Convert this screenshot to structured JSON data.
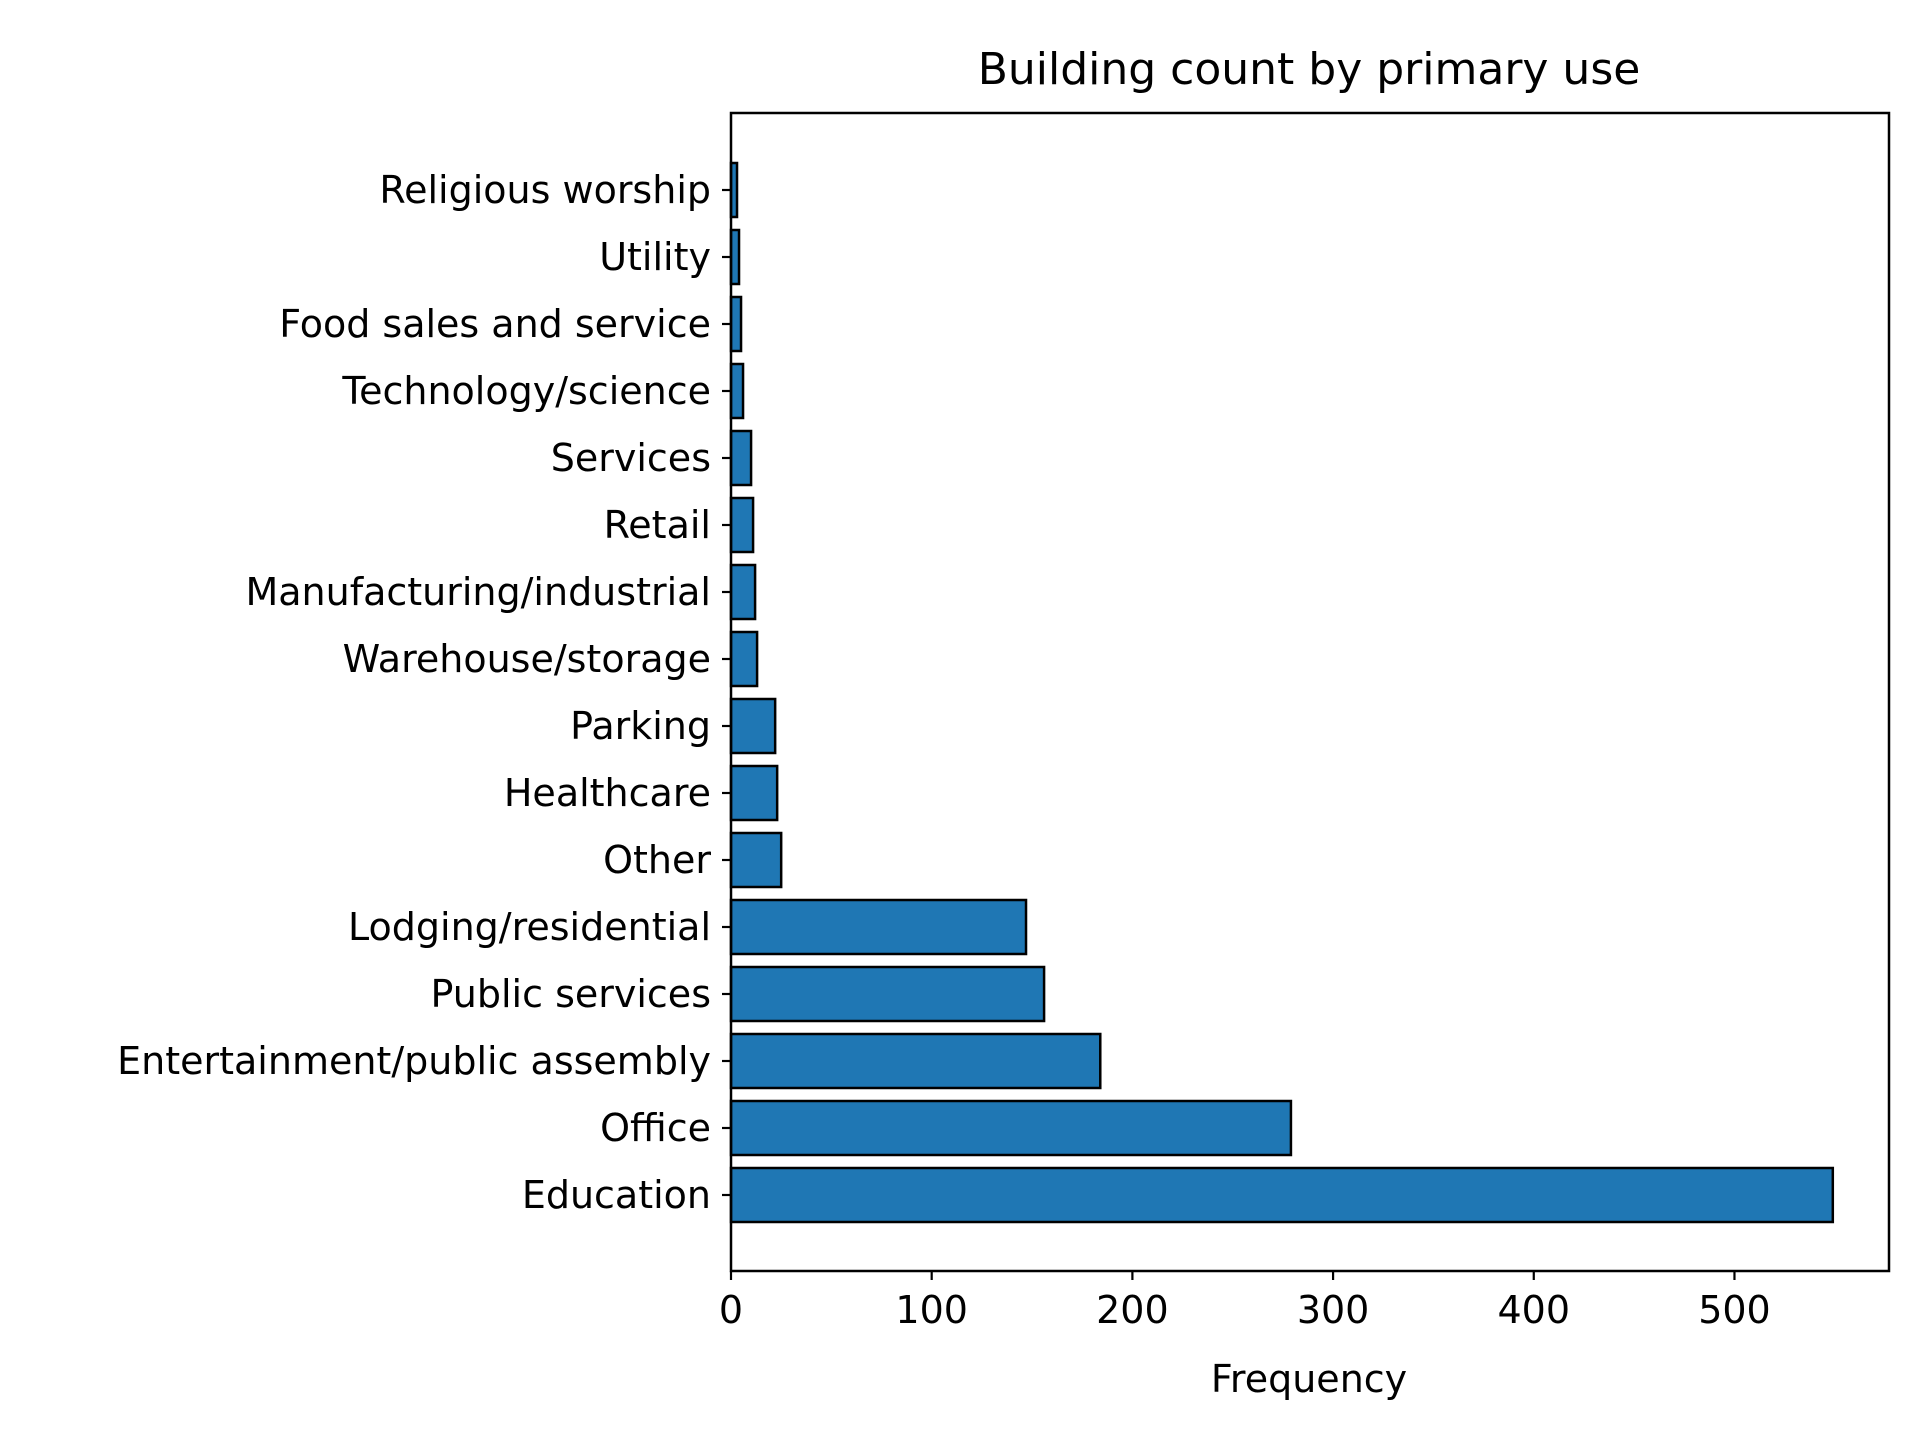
{
  "chart_data": {
    "type": "bar",
    "orientation": "horizontal",
    "title": "Building count by primary use",
    "xlabel": "Frequency",
    "ylabel": "",
    "categories": [
      "Education",
      "Office",
      "Entertainment/public assembly",
      "Public services",
      "Lodging/residential",
      "Other",
      "Healthcare",
      "Parking",
      "Warehouse/storage",
      "Manufacturing/industrial",
      "Retail",
      "Services",
      "Technology/science",
      "Food sales and service",
      "Utility",
      "Religious worship"
    ],
    "values": [
      549,
      279,
      184,
      156,
      147,
      25,
      23,
      22,
      13,
      12,
      11,
      10,
      6,
      5,
      4,
      3
    ],
    "xlim": [
      0,
      577
    ],
    "xticks": [
      0,
      100,
      200,
      300,
      400,
      500
    ],
    "grid": false,
    "legend": "none",
    "bar_color": "#1f77b4",
    "edge_color": "#000000"
  }
}
